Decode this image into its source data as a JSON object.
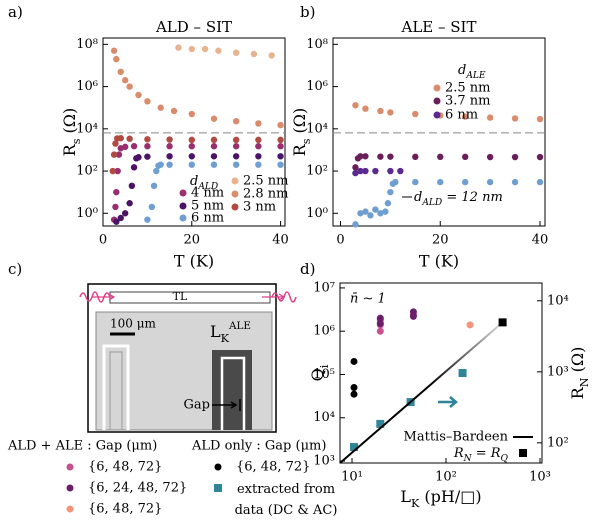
{
  "panel_labels": [
    "a)",
    "b)",
    "c)",
    "d)"
  ],
  "chart_data": [
    {
      "type": "scatter",
      "title": "ALD – SIT",
      "x_label": "T (K)",
      "y_label": [
        "R",
        "s",
        " (Ω)"
      ],
      "xlim": [
        0,
        41
      ],
      "ylim": [
        0.25,
        200000000
      ],
      "log_y": true,
      "xticks": [
        0,
        20,
        40
      ],
      "yticks": [
        {
          "value": 1,
          "label": "10⁰"
        },
        {
          "value": 100,
          "label": "10²"
        },
        {
          "value": 10000,
          "label": "10⁴"
        },
        {
          "value": 1000000,
          "label": "10⁶"
        },
        {
          "value": 100000000,
          "label": "10⁸"
        }
      ],
      "ref_line": 6450,
      "legend_title": [
        "d",
        "ALD"
      ],
      "series": [
        {
          "name": "4 nm",
          "color": "#9a2f6f",
          "x": [
            2.5,
            2.8,
            3,
            3.3,
            3.6,
            4,
            5,
            7,
            10,
            15,
            20,
            25,
            30,
            35,
            40
          ],
          "values": [
            0.5,
            2,
            10,
            100,
            600,
            1200,
            1400,
            1500,
            1500,
            1500,
            1500,
            1500,
            1500,
            1500,
            1500
          ]
        },
        {
          "name": "5 nm",
          "color": "#4a1366",
          "x": [
            3,
            4,
            5,
            6,
            6.5,
            7,
            7.5,
            8,
            10,
            15,
            20,
            25,
            30,
            35,
            40
          ],
          "values": [
            0.4,
            0.6,
            1,
            3,
            20,
            150,
            400,
            450,
            480,
            500,
            500,
            500,
            500,
            500,
            500
          ]
        },
        {
          "name": "6 nm",
          "color": "#6f9ed0",
          "x": [
            10,
            11,
            11.5,
            12,
            12.5,
            13,
            15,
            20,
            25,
            30,
            35,
            40
          ],
          "values": [
            0.5,
            2,
            20,
            100,
            180,
            200,
            200,
            200,
            200,
            200,
            200,
            200
          ]
        },
        {
          "name": "2.5 nm",
          "color": "#e8b490",
          "x": [
            17,
            20,
            23,
            26,
            30,
            34,
            38
          ],
          "values": [
            70000000,
            60000000,
            60000000,
            50000000,
            40000000,
            35000000,
            30000000
          ]
        },
        {
          "name": "2.8 nm",
          "color": "#d98c6c",
          "x": [
            2.5,
            3,
            4,
            5,
            6,
            8,
            10,
            13,
            16,
            20,
            25,
            30,
            35,
            40
          ],
          "values": [
            50000000,
            20000000,
            5000000,
            2000000,
            1000000,
            400000,
            200000,
            100000,
            70000,
            50000,
            30000,
            23000,
            18000,
            15000
          ]
        },
        {
          "name": "3 nm",
          "color": "#b04a42",
          "x": [
            2.2,
            2.5,
            2.8,
            3.2,
            4,
            6,
            10,
            15,
            20,
            25,
            30,
            35,
            40
          ],
          "values": [
            100,
            600,
            2000,
            3500,
            3600,
            3400,
            3200,
            3100,
            3000,
            3000,
            3000,
            3000,
            3000
          ]
        }
      ]
    },
    {
      "type": "scatter",
      "title": "ALE – SIT",
      "x_label": "T (K)",
      "y_label": [
        "R",
        "s",
        " (Ω)"
      ],
      "xlim": [
        -1.5,
        41
      ],
      "ylim": [
        0.25,
        200000000
      ],
      "log_y": true,
      "xticks": [
        0,
        20,
        40
      ],
      "yticks": [
        {
          "value": 1,
          "label": "10⁰"
        },
        {
          "value": 100,
          "label": "10²"
        },
        {
          "value": 10000,
          "label": "10⁴"
        },
        {
          "value": 1000000,
          "label": "10⁶"
        },
        {
          "value": 100000000,
          "label": "10⁸"
        }
      ],
      "ref_line": 6450,
      "legend_title": [
        "d",
        "ALE"
      ],
      "annotation": [
        "d",
        "ALD",
        " = 12 nm"
      ],
      "series": [
        {
          "name": "2.5 nm",
          "color": "#d98c6c",
          "x": [
            3,
            5,
            8,
            10,
            15,
            20,
            25,
            30,
            35,
            40
          ],
          "values": [
            130000,
            90000,
            70000,
            60000,
            50000,
            43000,
            38000,
            34000,
            31000,
            29000
          ]
        },
        {
          "name": "3.7 nm",
          "color": "#6b1f5a",
          "x": [
            3,
            3.5,
            4,
            5,
            8,
            10,
            15,
            20,
            25,
            30,
            35,
            40
          ],
          "values": [
            150,
            400,
            500,
            500,
            480,
            480,
            470,
            470,
            470,
            460,
            460,
            460
          ]
        },
        {
          "name": "6 nm",
          "color": "#5a2a90",
          "x": [
            3,
            4,
            5,
            7,
            10,
            12
          ],
          "values": [
            80,
            100,
            100,
            100,
            100,
            100
          ]
        },
        {
          "color": "#6f9ed0",
          "x": [
            3,
            4,
            5,
            6,
            7,
            8,
            9,
            9.5,
            10,
            10.5,
            11,
            15,
            20,
            25,
            30,
            35,
            40
          ],
          "values": [
            0.3,
            1,
            1.2,
            0.8,
            1.5,
            1,
            1.2,
            3,
            10,
            25,
            30,
            30,
            30,
            30,
            30,
            30,
            30
          ]
        }
      ]
    },
    {
      "type": "scatter",
      "x_label": [
        "L",
        "K",
        " (pH/□)"
      ],
      "y_label": [
        "Q",
        "i"
      ],
      "y2_label": [
        "R",
        "N",
        " (Ω)"
      ],
      "xlim": [
        7.45,
        1050
      ],
      "ylim": [
        900,
        13000000
      ],
      "y2lim": [
        52,
        17800
      ],
      "log_x": true,
      "log_y": true,
      "log_y2": true,
      "xticks": [
        {
          "value": 10,
          "label": "10¹"
        },
        {
          "value": 100,
          "label": "10²"
        },
        {
          "value": 1000,
          "label": "10³"
        }
      ],
      "yticks": [
        {
          "value": 1000,
          "label": "10³"
        },
        {
          "value": 10000,
          "label": "10⁴"
        },
        {
          "value": 100000,
          "label": "10⁵"
        },
        {
          "value": 1000000,
          "label": "10⁶"
        },
        {
          "value": 10000000,
          "label": "10⁷"
        }
      ],
      "y2ticks": [
        {
          "value": 100,
          "label": "10²"
        },
        {
          "value": 1000,
          "label": "10³"
        },
        {
          "value": 10000,
          "label": "10⁴"
        }
      ],
      "annotation": "n̄ ∼ 1",
      "legend_titles": [
        "ALD + ALE : Gap (μm)",
        "ALD only : Gap (μm)"
      ],
      "series": [
        {
          "name": "{6, 48, 72}",
          "color": "#c8508f",
          "marker": "circle",
          "x": [
            20,
            20,
            20,
            45
          ],
          "values": [
            1800000,
            1400000,
            1000000,
            2400000
          ]
        },
        {
          "name": "{6, 24, 48, 72}",
          "color": "#6b1f6b",
          "marker": "circle",
          "x": [
            20,
            20,
            45,
            45
          ],
          "values": [
            2000000,
            1500000,
            2800000,
            2200000
          ]
        },
        {
          "name": "{6, 48, 72}",
          "color": "#f4957b",
          "marker": "circle",
          "x": [
            180
          ],
          "values": [
            1400000
          ]
        },
        {
          "name": "{6, 48, 72}",
          "color": "#000000",
          "marker": "circle",
          "x": [
            10.5,
            10.5,
            10.5
          ],
          "values": [
            200000,
            50000,
            35000
          ]
        },
        {
          "name": "extracted from data (DC & AC)",
          "color": "#2f8497",
          "marker": "square",
          "x": [
            10.5,
            20,
            42,
            150
          ],
          "values": [
            2100,
            7200,
            23000,
            108000
          ]
        },
        {
          "name": "Mattis–Bardeen",
          "color": "#000000",
          "marker": "line",
          "x": [
            7.45,
            400
          ],
          "values": [
            900,
            1600000
          ]
        },
        {
          "name": [
            "R",
            "N",
            " = R",
            "Q"
          ],
          "color": "#000000",
          "marker": "square",
          "x": [
            400
          ],
          "values": [
            1600000
          ]
        }
      ]
    }
  ],
  "panel_c": {
    "tl": "TL",
    "scale_bar": "100 μm",
    "lk_label": [
      "L",
      "K"
    ],
    "lk_sup": "ALE",
    "gap": "Gap"
  }
}
